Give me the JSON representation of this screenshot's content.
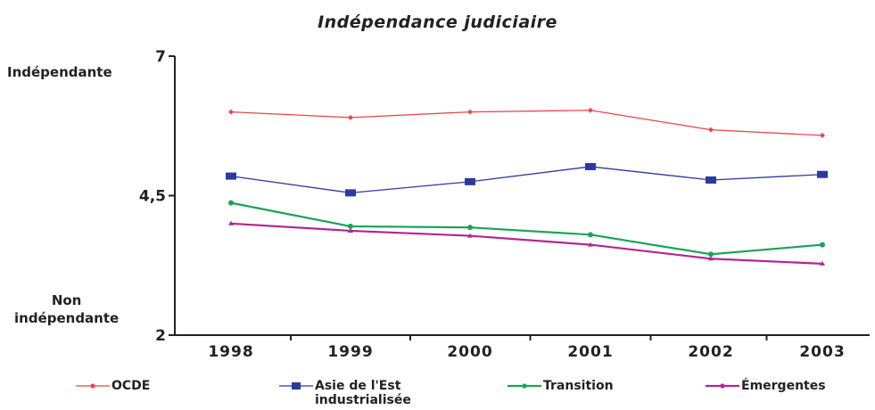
{
  "chart_data": {
    "type": "line",
    "title": "Indépendance judiciaire",
    "y_top_label": "Indépendante",
    "y_bottom_label": "Non\nindépendante",
    "x": [
      "1998",
      "1999",
      "2000",
      "2001",
      "2002",
      "2003"
    ],
    "ylim": [
      2,
      7
    ],
    "yticks": [
      "2",
      "4,5",
      "7"
    ],
    "grid": false,
    "legend_position": "bottom",
    "series": [
      {
        "name": "OCDE",
        "color": "#e8474c",
        "marker": "diamond",
        "values": [
          6.0,
          5.9,
          6.0,
          6.03,
          5.68,
          5.58
        ]
      },
      {
        "name": "Asie de l'Est\nindustrialisée",
        "color": "#2b3a9e",
        "marker": "square",
        "values": [
          4.85,
          4.55,
          4.75,
          5.02,
          4.78,
          4.88
        ]
      },
      {
        "name": "Transition",
        "color": "#1aa35a",
        "marker": "circle",
        "values": [
          4.37,
          3.95,
          3.93,
          3.8,
          3.45,
          3.62
        ]
      },
      {
        "name": "Émergentes",
        "color": "#b3258f",
        "marker": "triangle",
        "values": [
          4.0,
          3.87,
          3.78,
          3.62,
          3.37,
          3.28
        ]
      }
    ]
  }
}
